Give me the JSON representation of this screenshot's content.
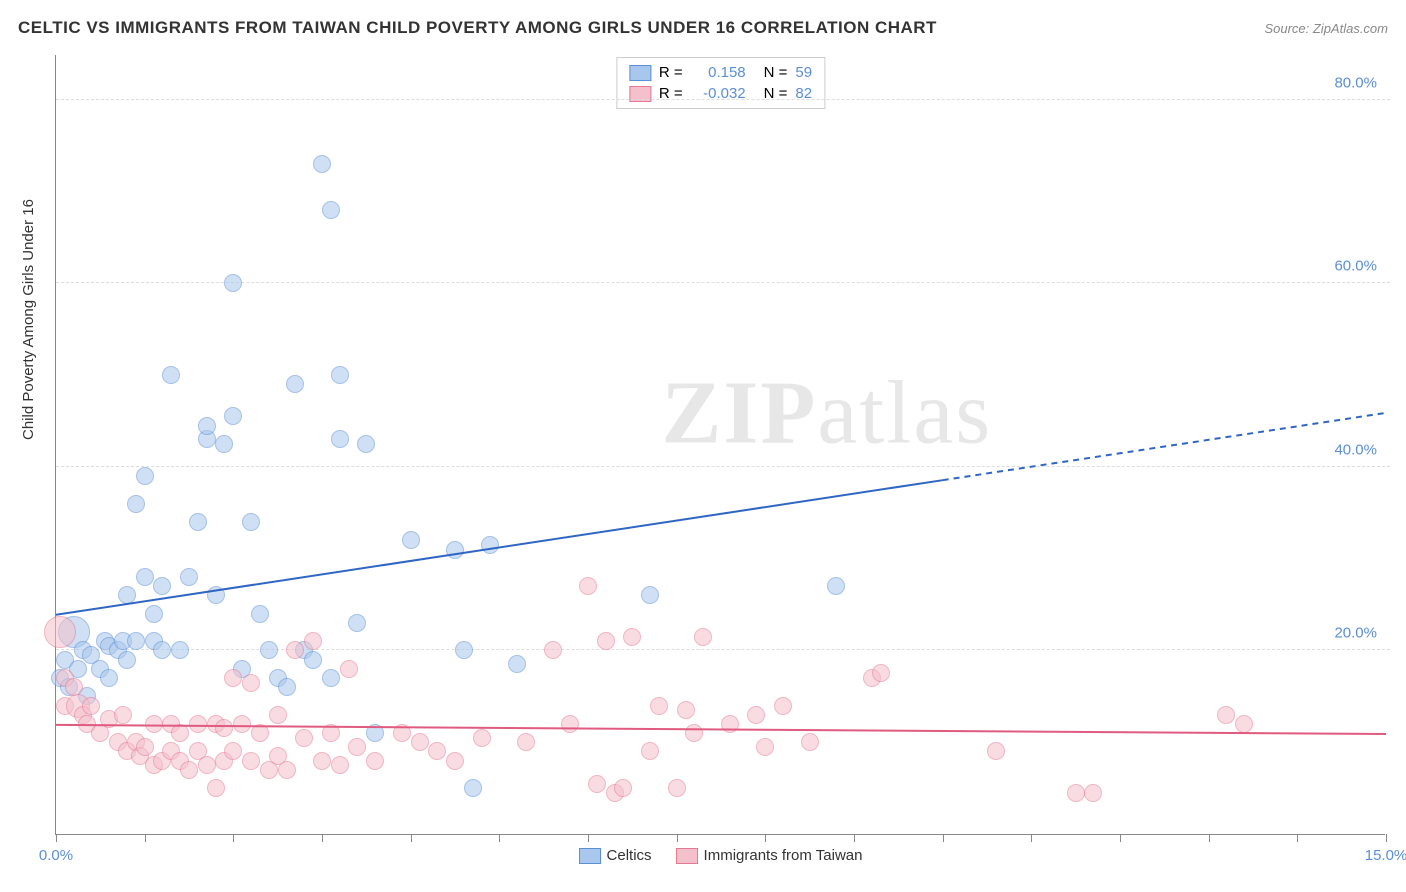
{
  "header": {
    "title": "CELTIC VS IMMIGRANTS FROM TAIWAN CHILD POVERTY AMONG GIRLS UNDER 16 CORRELATION CHART",
    "source_prefix": "Source: ",
    "source_name": "ZipAtlas.com"
  },
  "watermark": {
    "zip": "ZIP",
    "atlas": "atlas"
  },
  "chart": {
    "type": "scatter",
    "background_color": "#ffffff",
    "grid_color": "#dddddd",
    "axis_color": "#888888",
    "y_axis_title": "Child Poverty Among Girls Under 16",
    "xlim": [
      0.0,
      15.0
    ],
    "ylim": [
      0.0,
      85.0
    ],
    "x_ticks_minor_step": 1.0,
    "x_tick_labels": [
      {
        "v": 0.0,
        "label": "0.0%"
      },
      {
        "v": 15.0,
        "label": "15.0%"
      }
    ],
    "y_tick_labels": [
      {
        "v": 20.0,
        "label": "20.0%"
      },
      {
        "v": 40.0,
        "label": "40.0%"
      },
      {
        "v": 60.0,
        "label": "60.0%"
      },
      {
        "v": 80.0,
        "label": "80.0%"
      }
    ],
    "marker_radius": 9,
    "marker_radius_large": 16,
    "marker_opacity": 0.55,
    "series": [
      {
        "name": "Celtics",
        "color_fill": "#a9c7ec",
        "color_stroke": "#5b8fd6",
        "R": "0.158",
        "N": "59",
        "trend": {
          "y_at_x0": 24.0,
          "y_at_xmax": 46.0,
          "solid_until_x": 10.0,
          "color": "#2f66c4",
          "width": 2
        },
        "points": [
          {
            "x": 0.05,
            "y": 17.0
          },
          {
            "x": 0.1,
            "y": 19.0
          },
          {
            "x": 0.2,
            "y": 22.0,
            "r": 16
          },
          {
            "x": 0.15,
            "y": 16.0
          },
          {
            "x": 0.25,
            "y": 18.0
          },
          {
            "x": 0.3,
            "y": 20.0
          },
          {
            "x": 0.35,
            "y": 15.0
          },
          {
            "x": 0.4,
            "y": 19.5
          },
          {
            "x": 0.5,
            "y": 18.0
          },
          {
            "x": 0.55,
            "y": 21.0
          },
          {
            "x": 0.6,
            "y": 20.5
          },
          {
            "x": 0.7,
            "y": 20.0
          },
          {
            "x": 0.75,
            "y": 21.0
          },
          {
            "x": 0.8,
            "y": 19.0
          },
          {
            "x": 0.8,
            "y": 26.0
          },
          {
            "x": 0.9,
            "y": 21.0
          },
          {
            "x": 0.9,
            "y": 36.0
          },
          {
            "x": 1.0,
            "y": 39.0
          },
          {
            "x": 1.0,
            "y": 28.0
          },
          {
            "x": 1.1,
            "y": 21.0
          },
          {
            "x": 1.1,
            "y": 24.0
          },
          {
            "x": 1.2,
            "y": 27.0
          },
          {
            "x": 1.2,
            "y": 20.0
          },
          {
            "x": 1.3,
            "y": 50.0
          },
          {
            "x": 1.4,
            "y": 20.0
          },
          {
            "x": 1.5,
            "y": 28.0
          },
          {
            "x": 1.6,
            "y": 34.0
          },
          {
            "x": 1.7,
            "y": 43.0
          },
          {
            "x": 1.7,
            "y": 44.5
          },
          {
            "x": 1.9,
            "y": 42.5
          },
          {
            "x": 2.0,
            "y": 60.0
          },
          {
            "x": 2.0,
            "y": 45.5
          },
          {
            "x": 2.1,
            "y": 18.0
          },
          {
            "x": 2.2,
            "y": 34.0
          },
          {
            "x": 2.3,
            "y": 24.0
          },
          {
            "x": 2.4,
            "y": 20.0
          },
          {
            "x": 2.5,
            "y": 17.0
          },
          {
            "x": 2.7,
            "y": 49.0
          },
          {
            "x": 2.8,
            "y": 20.0
          },
          {
            "x": 2.9,
            "y": 19.0
          },
          {
            "x": 3.0,
            "y": 73.0
          },
          {
            "x": 3.1,
            "y": 68.0
          },
          {
            "x": 3.1,
            "y": 17.0
          },
          {
            "x": 3.2,
            "y": 43.0
          },
          {
            "x": 3.2,
            "y": 50.0
          },
          {
            "x": 3.4,
            "y": 23.0
          },
          {
            "x": 3.5,
            "y": 42.5
          },
          {
            "x": 3.6,
            "y": 11.0
          },
          {
            "x": 4.0,
            "y": 32.0
          },
          {
            "x": 4.5,
            "y": 31.0
          },
          {
            "x": 4.6,
            "y": 20.0
          },
          {
            "x": 4.7,
            "y": 5.0
          },
          {
            "x": 4.9,
            "y": 31.5
          },
          {
            "x": 5.2,
            "y": 18.5
          },
          {
            "x": 6.7,
            "y": 26.0
          },
          {
            "x": 8.8,
            "y": 27.0
          },
          {
            "x": 1.8,
            "y": 26.0
          },
          {
            "x": 0.6,
            "y": 17.0
          },
          {
            "x": 2.6,
            "y": 16.0
          }
        ]
      },
      {
        "name": "Immigrants from Taiwan",
        "color_fill": "#f4c0cb",
        "color_stroke": "#e67a94",
        "R": "-0.032",
        "N": "82",
        "trend": {
          "y_at_x0": 12.0,
          "y_at_xmax": 11.0,
          "solid_until_x": 15.0,
          "color": "#e15a7f",
          "width": 2
        },
        "points": [
          {
            "x": 0.05,
            "y": 22.0,
            "r": 16
          },
          {
            "x": 0.1,
            "y": 17.0
          },
          {
            "x": 0.1,
            "y": 14.0
          },
          {
            "x": 0.2,
            "y": 16.0
          },
          {
            "x": 0.25,
            "y": 14.0,
            "r": 12
          },
          {
            "x": 0.3,
            "y": 13.0
          },
          {
            "x": 0.35,
            "y": 12.0
          },
          {
            "x": 0.4,
            "y": 14.0
          },
          {
            "x": 0.5,
            "y": 11.0
          },
          {
            "x": 0.6,
            "y": 12.5
          },
          {
            "x": 0.7,
            "y": 10.0
          },
          {
            "x": 0.75,
            "y": 13.0
          },
          {
            "x": 0.8,
            "y": 9.0
          },
          {
            "x": 0.9,
            "y": 10.0
          },
          {
            "x": 0.95,
            "y": 8.5
          },
          {
            "x": 1.0,
            "y": 9.5
          },
          {
            "x": 1.1,
            "y": 7.5
          },
          {
            "x": 1.1,
            "y": 12.0
          },
          {
            "x": 1.2,
            "y": 8.0
          },
          {
            "x": 1.3,
            "y": 9.0
          },
          {
            "x": 1.3,
            "y": 12.0
          },
          {
            "x": 1.4,
            "y": 8.0
          },
          {
            "x": 1.4,
            "y": 11.0
          },
          {
            "x": 1.5,
            "y": 7.0
          },
          {
            "x": 1.6,
            "y": 12.0
          },
          {
            "x": 1.6,
            "y": 9.0
          },
          {
            "x": 1.7,
            "y": 7.5
          },
          {
            "x": 1.8,
            "y": 5.0
          },
          {
            "x": 1.8,
            "y": 12.0
          },
          {
            "x": 1.9,
            "y": 8.0
          },
          {
            "x": 1.9,
            "y": 11.5
          },
          {
            "x": 2.0,
            "y": 17.0
          },
          {
            "x": 2.0,
            "y": 9.0
          },
          {
            "x": 2.1,
            "y": 12.0
          },
          {
            "x": 2.2,
            "y": 8.0
          },
          {
            "x": 2.2,
            "y": 16.5
          },
          {
            "x": 2.3,
            "y": 11.0
          },
          {
            "x": 2.4,
            "y": 7.0
          },
          {
            "x": 2.5,
            "y": 13.0
          },
          {
            "x": 2.5,
            "y": 8.5
          },
          {
            "x": 2.6,
            "y": 7.0
          },
          {
            "x": 2.7,
            "y": 20.0
          },
          {
            "x": 2.8,
            "y": 10.5
          },
          {
            "x": 2.9,
            "y": 21.0
          },
          {
            "x": 3.0,
            "y": 8.0
          },
          {
            "x": 3.1,
            "y": 11.0
          },
          {
            "x": 3.2,
            "y": 7.5
          },
          {
            "x": 3.3,
            "y": 18.0
          },
          {
            "x": 3.4,
            "y": 9.5
          },
          {
            "x": 3.6,
            "y": 8.0
          },
          {
            "x": 3.9,
            "y": 11.0
          },
          {
            "x": 4.1,
            "y": 10.0
          },
          {
            "x": 4.3,
            "y": 9.0
          },
          {
            "x": 4.5,
            "y": 8.0
          },
          {
            "x": 4.8,
            "y": 10.5
          },
          {
            "x": 5.3,
            "y": 10.0
          },
          {
            "x": 5.6,
            "y": 20.0
          },
          {
            "x": 5.8,
            "y": 12.0
          },
          {
            "x": 6.0,
            "y": 27.0
          },
          {
            "x": 6.1,
            "y": 5.5
          },
          {
            "x": 6.2,
            "y": 21.0
          },
          {
            "x": 6.3,
            "y": 4.5
          },
          {
            "x": 6.4,
            "y": 5.0
          },
          {
            "x": 6.5,
            "y": 21.5
          },
          {
            "x": 6.7,
            "y": 9.0
          },
          {
            "x": 6.8,
            "y": 14.0
          },
          {
            "x": 7.0,
            "y": 5.0
          },
          {
            "x": 7.1,
            "y": 13.5
          },
          {
            "x": 7.2,
            "y": 11.0
          },
          {
            "x": 7.3,
            "y": 21.5
          },
          {
            "x": 7.6,
            "y": 12.0
          },
          {
            "x": 7.9,
            "y": 13.0
          },
          {
            "x": 8.0,
            "y": 9.5
          },
          {
            "x": 8.2,
            "y": 14.0
          },
          {
            "x": 8.5,
            "y": 10.0
          },
          {
            "x": 9.2,
            "y": 17.0
          },
          {
            "x": 9.3,
            "y": 17.5
          },
          {
            "x": 10.6,
            "y": 9.0
          },
          {
            "x": 11.5,
            "y": 4.5
          },
          {
            "x": 11.7,
            "y": 4.5
          },
          {
            "x": 13.2,
            "y": 13.0
          },
          {
            "x": 13.4,
            "y": 12.0
          }
        ]
      }
    ],
    "legend_top_labels": {
      "R_label": "R =",
      "N_label": "N ="
    },
    "legend_bottom": [
      {
        "label": "Celtics",
        "fill": "#a9c7ec",
        "stroke": "#5b8fd6"
      },
      {
        "label": "Immigrants from Taiwan",
        "fill": "#f4c0cb",
        "stroke": "#e67a94"
      }
    ]
  }
}
